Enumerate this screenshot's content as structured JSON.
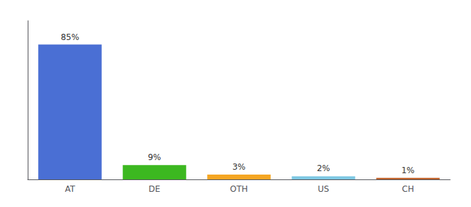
{
  "chart_data": {
    "type": "bar",
    "categories": [
      "AT",
      "DE",
      "OTH",
      "US",
      "CH"
    ],
    "values": [
      85,
      9,
      3,
      2,
      1
    ],
    "value_labels": [
      "85%",
      "9%",
      "3%",
      "2%",
      "1%"
    ],
    "colors": [
      "#4A6FD4",
      "#3CB820",
      "#F5A623",
      "#7EC8E3",
      "#C0622A"
    ],
    "ylim": [
      0,
      100
    ],
    "data_labels": true,
    "tick_labels": "x",
    "grid": false
  }
}
